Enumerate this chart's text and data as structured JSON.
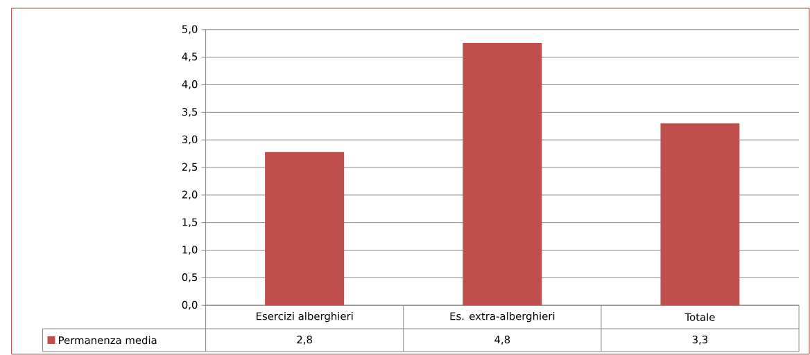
{
  "chart_data": {
    "type": "bar",
    "categories": [
      "Esercizi alberghieri",
      "Es. extra-alberghieri",
      "Totale"
    ],
    "series": [
      {
        "name": "Permanenza media",
        "color": "#c0504d",
        "values": [
          2.78,
          4.76,
          3.3
        ],
        "value_labels": [
          "2,8",
          "4,8",
          "3,3"
        ]
      }
    ],
    "ylim": [
      0,
      5
    ],
    "yticks": [
      {
        "value": 0,
        "label": "0,0"
      },
      {
        "value": 0.5,
        "label": "0,5"
      },
      {
        "value": 1,
        "label": "1,0"
      },
      {
        "value": 1.5,
        "label": "1,5"
      },
      {
        "value": 2,
        "label": "2,0"
      },
      {
        "value": 2.5,
        "label": "2,5"
      },
      {
        "value": 3,
        "label": "3,0"
      },
      {
        "value": 3.5,
        "label": "3,5"
      },
      {
        "value": 4,
        "label": "4,0"
      },
      {
        "value": 4.5,
        "label": "4,5"
      },
      {
        "value": 5,
        "label": "5,0"
      }
    ],
    "grid": "y",
    "legend": "bottom"
  }
}
